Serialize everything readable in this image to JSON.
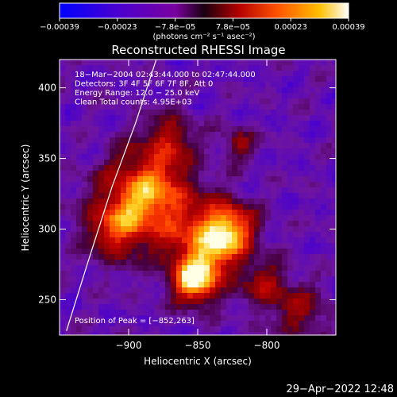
{
  "chart_data": {
    "type": "heatmap",
    "title": "Reconstructed RHESSI Image",
    "xlabel": "Heliocentric X (arcsec)",
    "ylabel": "Heliocentric Y (arcsec)",
    "xlim": [
      -950,
      -750
    ],
    "ylim": [
      225,
      420
    ],
    "x_ticks": [
      {
        "value": -900,
        "label": "−900"
      },
      {
        "value": -850,
        "label": "−850"
      },
      {
        "value": -800,
        "label": "−800"
      }
    ],
    "y_ticks": [
      {
        "value": 250,
        "label": "250"
      },
      {
        "value": 300,
        "label": "300"
      },
      {
        "value": 350,
        "label": "350"
      },
      {
        "value": 400,
        "label": "400"
      }
    ],
    "colorbar": {
      "range": [
        -0.00039,
        0.00039
      ],
      "tick_labels": [
        "−0.00039",
        "−0.00023",
        "−7.8e−05",
        "7.8e−05",
        "0.00023",
        "0.00039"
      ],
      "units": "(photons cm⁻² s⁻¹ asec⁻²)",
      "colors": [
        "#0000ff",
        "#7a00a0",
        "#b30000",
        "#ff5000",
        "#ffc000",
        "#ffffff"
      ]
    },
    "annotations": [
      "18−Mar−2004 02:43:44.000 to 02:47:44.000",
      "Detectors: 3F 4F 5F 6F 7F 8F, Att 0",
      "Energy Range: 12.0 − 25.0 keV",
      "Clean     Total counts: 4.95E+03"
    ],
    "peak_label": "Position of Peak = [−852,263]",
    "peak": [
      -852,
      263
    ],
    "emission_sources": [
      {
        "x": -885,
        "y": 325,
        "sigma": 22,
        "amp": 0.95
      },
      {
        "x": -852,
        "y": 263,
        "sigma": 11,
        "amp": 1.0
      },
      {
        "x": -828,
        "y": 300,
        "sigma": 14,
        "amp": 0.85
      },
      {
        "x": -845,
        "y": 285,
        "sigma": 18,
        "amp": 0.7
      },
      {
        "x": -910,
        "y": 300,
        "sigma": 16,
        "amp": 0.55
      },
      {
        "x": -870,
        "y": 365,
        "sigma": 12,
        "amp": 0.45
      },
      {
        "x": -800,
        "y": 260,
        "sigma": 12,
        "amp": 0.45
      },
      {
        "x": -775,
        "y": 240,
        "sigma": 14,
        "amp": 0.4
      },
      {
        "x": -820,
        "y": 360,
        "sigma": 8,
        "amp": 0.45
      }
    ],
    "limb_curve": [
      [
        -945,
        228
      ],
      [
        -930,
        275
      ],
      [
        -912,
        330
      ],
      [
        -895,
        375
      ],
      [
        -880,
        420
      ]
    ],
    "timestamp": "29−Apr−2022 12:48"
  }
}
